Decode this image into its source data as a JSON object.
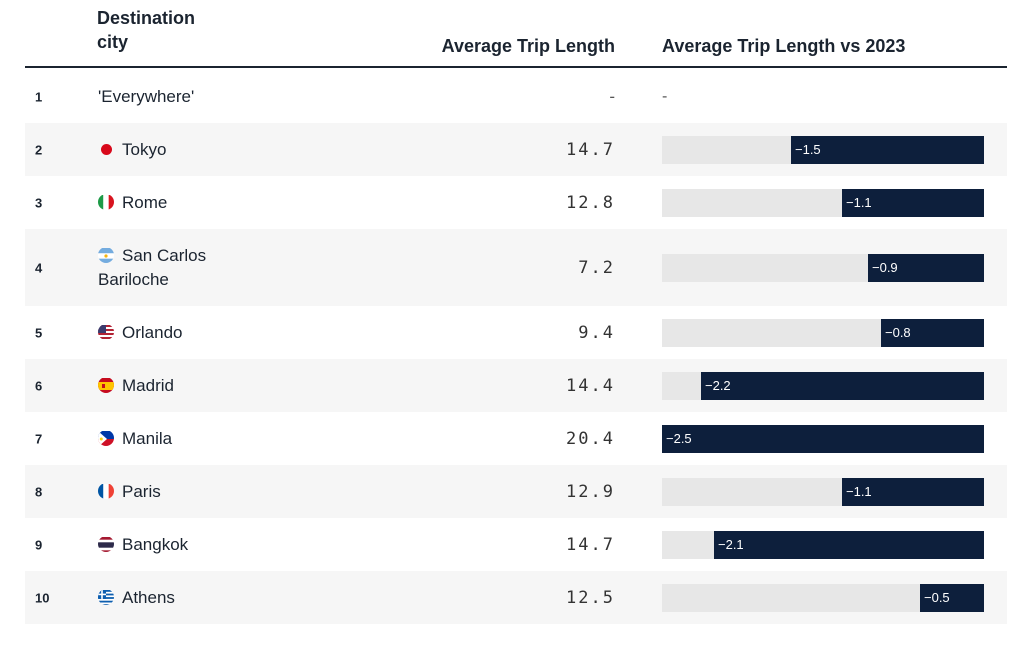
{
  "header": {
    "city": "Destination\ncity",
    "avg": "Average Trip Length",
    "vs": "Average Trip Length vs 2023"
  },
  "rows": [
    {
      "rank": "1",
      "city": "'Everywhere'",
      "flag": "none",
      "avg": "-",
      "vs": "-"
    },
    {
      "rank": "2",
      "city": "Tokyo",
      "flag": "japan-flag-icon",
      "avg": "14.7",
      "vs": "−1.5"
    },
    {
      "rank": "3",
      "city": "Rome",
      "flag": "italy-flag-icon",
      "avg": "12.8",
      "vs": "−1.1"
    },
    {
      "rank": "4",
      "city": "San Carlos Bariloche",
      "flag": "argentina-flag-icon",
      "avg": "7.2",
      "vs": "−0.9"
    },
    {
      "rank": "5",
      "city": "Orlando",
      "flag": "usa-flag-icon",
      "avg": "9.4",
      "vs": "−0.8"
    },
    {
      "rank": "6",
      "city": "Madrid",
      "flag": "spain-flag-icon",
      "avg": "14.4",
      "vs": "−2.2"
    },
    {
      "rank": "7",
      "city": "Manila",
      "flag": "philippines-flag-icon",
      "avg": "20.4",
      "vs": "−2.5"
    },
    {
      "rank": "8",
      "city": "Paris",
      "flag": "france-flag-icon",
      "avg": "12.9",
      "vs": "−1.1"
    },
    {
      "rank": "9",
      "city": "Bangkok",
      "flag": "thailand-flag-icon",
      "avg": "14.7",
      "vs": "−2.1"
    },
    {
      "rank": "10",
      "city": "Athens",
      "flag": "greece-flag-icon",
      "avg": "12.5",
      "vs": "−0.5"
    }
  ],
  "chart_data": {
    "type": "bar",
    "categories": [
      "'Everywhere'",
      "Tokyo",
      "Rome",
      "San Carlos Bariloche",
      "Orlando",
      "Madrid",
      "Manila",
      "Paris",
      "Bangkok",
      "Athens"
    ],
    "series": [
      {
        "name": "Average Trip Length",
        "values": [
          null,
          14.7,
          12.8,
          7.2,
          9.4,
          14.4,
          20.4,
          12.9,
          14.7,
          12.5
        ]
      },
      {
        "name": "Average Trip Length vs 2023",
        "values": [
          null,
          -1.5,
          -1.1,
          -0.9,
          -0.8,
          -2.2,
          -2.5,
          -1.1,
          -2.1,
          -0.5
        ]
      }
    ],
    "bar_range": [
      -2.5,
      0
    ],
    "colors": {
      "bar": "#0d1f3c",
      "track": "#e7e7e7",
      "row_shade": "#f6f6f6"
    }
  }
}
